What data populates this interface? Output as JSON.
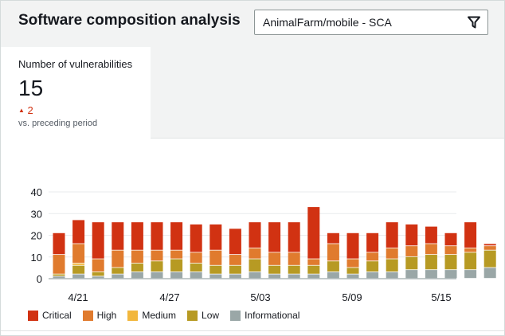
{
  "header": {
    "title": "Software composition analysis"
  },
  "filter": {
    "value": "AnimalFarm/mobile - SCA",
    "icon": "filter-icon"
  },
  "metric": {
    "label": "Number of vulnerabilities",
    "value": "15",
    "delta": "2",
    "delta_icon": "triangle-up-icon",
    "period_text": "vs. preceding period"
  },
  "colors": {
    "Critical": "#d13212",
    "High": "#e07b2e",
    "Medium": "#f2b73d",
    "Low": "#b79a23",
    "Informational": "#9aa7a7"
  },
  "chart_data": {
    "type": "bar",
    "stacked": true,
    "y_ticks": [
      "0",
      "10",
      "20",
      "30",
      "40"
    ],
    "ylim": [
      0,
      40
    ],
    "x_tick_labels": [
      "4/21",
      "4/27",
      "5/03",
      "5/09",
      "5/15"
    ],
    "series": [
      {
        "name": "Informational",
        "values": [
          1,
          2,
          1,
          2,
          3,
          3,
          3,
          3,
          2,
          2,
          3,
          2,
          2,
          2,
          3,
          2,
          3,
          3,
          4,
          4,
          4,
          4,
          5
        ]
      },
      {
        "name": "Low",
        "values": [
          1,
          4,
          2,
          3,
          4,
          5,
          6,
          4,
          4,
          4,
          6,
          4,
          4,
          4,
          5,
          3,
          5,
          6,
          6,
          7,
          7,
          8,
          8
        ]
      },
      {
        "name": "Medium",
        "values": [
          0,
          1,
          0,
          0,
          0,
          0,
          0,
          0,
          0,
          0,
          0,
          0,
          0,
          0,
          0,
          0,
          0,
          0,
          0,
          0,
          0,
          0,
          0
        ]
      },
      {
        "name": "High",
        "values": [
          9,
          9,
          6,
          8,
          6,
          5,
          4,
          5,
          7,
          5,
          5,
          6,
          6,
          3,
          8,
          4,
          4,
          5,
          5,
          5,
          4,
          2,
          2
        ]
      },
      {
        "name": "Critical",
        "values": [
          10,
          11,
          17,
          13,
          13,
          13,
          13,
          13,
          12,
          12,
          12,
          14,
          14,
          24,
          5,
          12,
          9,
          12,
          10,
          8,
          6,
          12,
          1
        ]
      }
    ],
    "legend": [
      "Critical",
      "High",
      "Medium",
      "Low",
      "Informational"
    ],
    "legend_position": "bottom",
    "grid": true
  }
}
